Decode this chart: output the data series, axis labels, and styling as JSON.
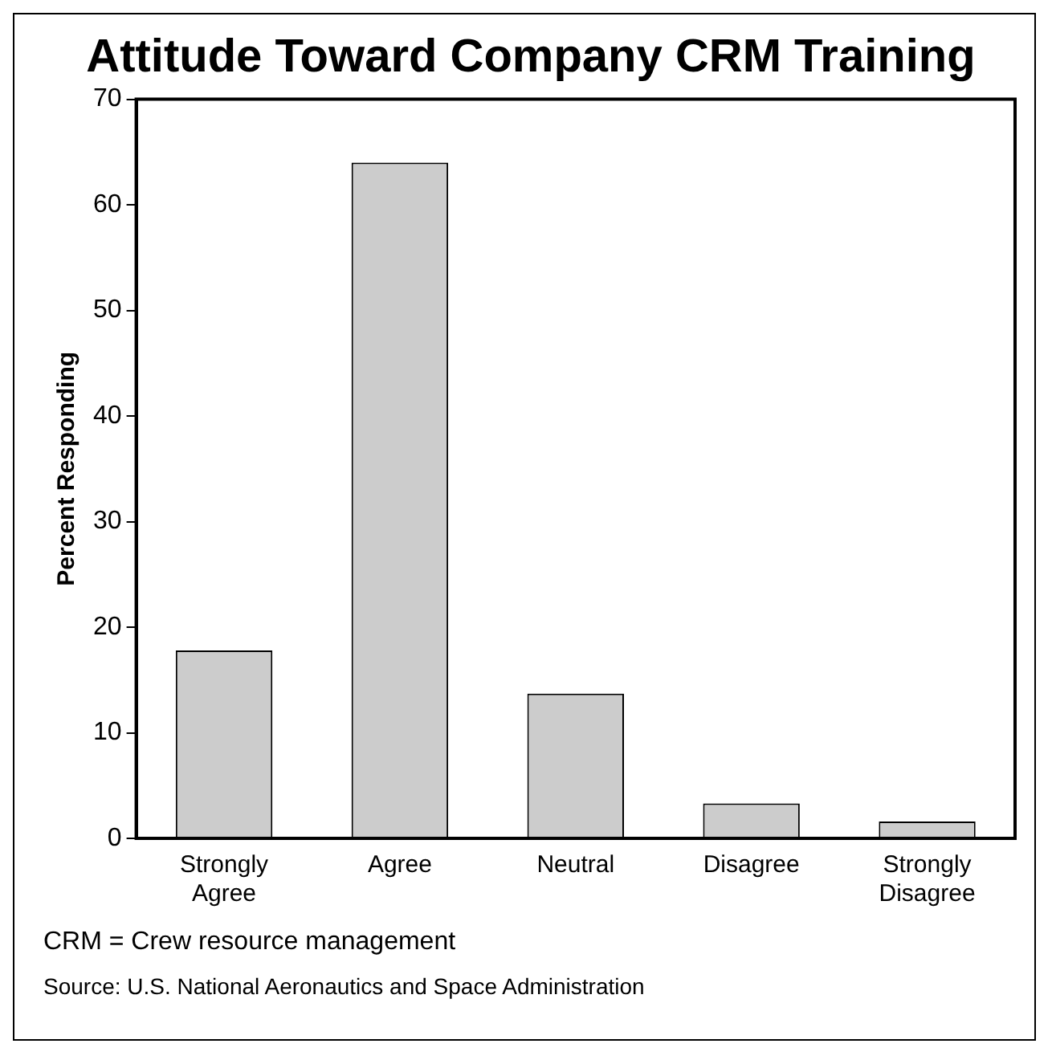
{
  "chart_data": {
    "type": "bar",
    "title": "Attitude Toward Company CRM Training",
    "ylabel": "Percent Responding",
    "categories": [
      "Strongly Agree",
      "Agree",
      "Neutral",
      "Disagree",
      "Strongly Disagree"
    ],
    "values": [
      17.8,
      64.0,
      13.7,
      3.3,
      1.6
    ],
    "color": "#cccccc",
    "ylim": [
      0,
      70
    ],
    "yticks": [
      0,
      10,
      20,
      30,
      40,
      50,
      60,
      70
    ],
    "grid": false,
    "legend": false,
    "annotations": [
      "CRM = Crew resource management",
      "Source: U.S. National Aeronautics and Space Administration"
    ]
  }
}
